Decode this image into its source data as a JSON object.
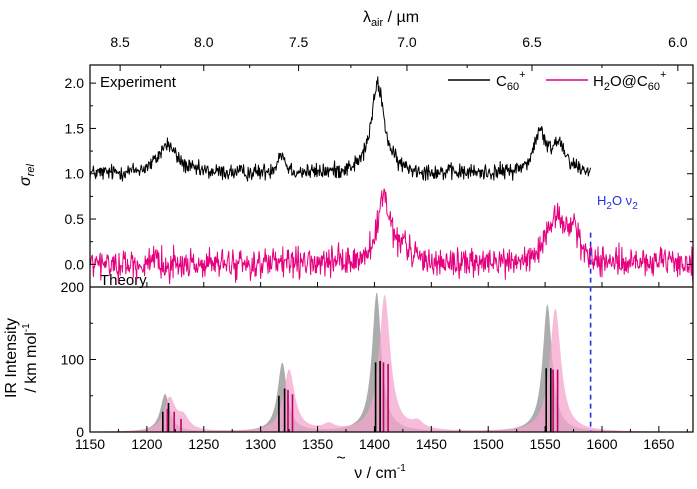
{
  "chart_data": {
    "type": "line",
    "top_axis": {
      "label_base": "λ",
      "label_sub": "air",
      "label_unit": " / µm",
      "ticks": [
        8.5,
        8.0,
        7.5,
        7.0,
        6.5,
        6.0
      ],
      "tick_labels": [
        "8.5",
        "8.0",
        "7.5",
        "7.0",
        "6.5",
        "6.0"
      ]
    },
    "bottom_axis": {
      "label_base": "ν",
      "label_unit": " / cm",
      "label_exp": "-1",
      "range": [
        1150,
        1680
      ],
      "ticks": [
        1150,
        1200,
        1250,
        1300,
        1350,
        1400,
        1450,
        1500,
        1550,
        1600,
        1650
      ],
      "tick_labels": [
        "1150",
        "1200",
        "1250",
        "1300",
        "1350",
        "1400",
        "1450",
        "1500",
        "1550",
        "1600",
        "1650"
      ]
    },
    "experiment_panel": {
      "label": "Experiment",
      "ylabel": "σ",
      "ylabel_sub": "rel",
      "ylim": [
        -0.25,
        2.2
      ],
      "yticks": [
        0.0,
        0.5,
        1.0,
        1.5,
        2.0
      ],
      "ytick_labels": [
        "0.0",
        "0.5",
        "1.0",
        "1.5",
        "2.0"
      ],
      "series": [
        {
          "name": "C60+",
          "legend_base": "C",
          "legend_sub": "60",
          "legend_sup": "+",
          "color": "#000000",
          "x_range": [
            1150,
            1590
          ],
          "baseline": 1.0,
          "noise": 0.09,
          "peaks": [
            [
              1218,
              0.32,
              10
            ],
            [
              1318,
              0.22,
              4
            ],
            [
              1403,
              0.98,
              7
            ],
            [
              1545,
              0.42,
              6
            ],
            [
              1562,
              0.32,
              8
            ]
          ]
        },
        {
          "name": "H2O@C60+",
          "legend_parts": [
            "H",
            "2",
            "O@C",
            "60",
            "+"
          ],
          "color": "#e6007e",
          "x_range": [
            1150,
            1680
          ],
          "baseline": 0.0,
          "noise": 0.16,
          "peaks": [
            [
              1408,
              0.72,
              6
            ],
            [
              1425,
              0.15,
              10
            ],
            [
              1560,
              0.5,
              9
            ],
            [
              1575,
              0.32,
              6
            ]
          ]
        }
      ]
    },
    "theory_panel": {
      "label": "Theory",
      "ylabel_line1": "IR Intensity",
      "ylabel_line2_base": "/ km mol",
      "ylabel_line2_exp": "-1",
      "ylim": [
        0,
        200
      ],
      "yticks": [
        0,
        100,
        200
      ],
      "ytick_labels": [
        "0",
        "100",
        "200"
      ],
      "series": [
        {
          "name": "C60+ theory",
          "color": "#a8a8a8",
          "fill_opacity": 0.95,
          "width": 5,
          "peaks": [
            [
              1216,
              52
            ],
            [
              1319,
              95
            ],
            [
              1402,
              192
            ],
            [
              1552,
              176
            ]
          ],
          "sticks": [
            [
              1214,
              28
            ],
            [
              1219,
              40
            ],
            [
              1316,
              50
            ],
            [
              1321,
              60
            ],
            [
              1401,
              96
            ],
            [
              1405,
              98
            ],
            [
              1551,
              88
            ],
            [
              1555,
              88
            ]
          ],
          "stick_color": "#000000"
        },
        {
          "name": "H2O@C60+ theory",
          "color": "#f4a6cc",
          "fill_opacity": 0.75,
          "width": 6,
          "peaks": [
            [
              1220,
              45
            ],
            [
              1232,
              18
            ],
            [
              1325,
              85
            ],
            [
              1360,
              8
            ],
            [
              1409,
              188
            ],
            [
              1438,
              10
            ],
            [
              1559,
              170
            ]
          ],
          "sticks": [
            [
              1218,
              32
            ],
            [
              1224,
              28
            ],
            [
              1230,
              18
            ],
            [
              1324,
              58
            ],
            [
              1328,
              52
            ],
            [
              1408,
              96
            ],
            [
              1412,
              94
            ],
            [
              1557,
              86
            ],
            [
              1561,
              86
            ]
          ],
          "stick_color": "#c0006a"
        }
      ]
    },
    "annotation": {
      "text_base": "H",
      "text_sub": "2",
      "text_mid": "O ν",
      "text_sub2": "2",
      "x": 1590,
      "color": "#2233dd"
    }
  }
}
